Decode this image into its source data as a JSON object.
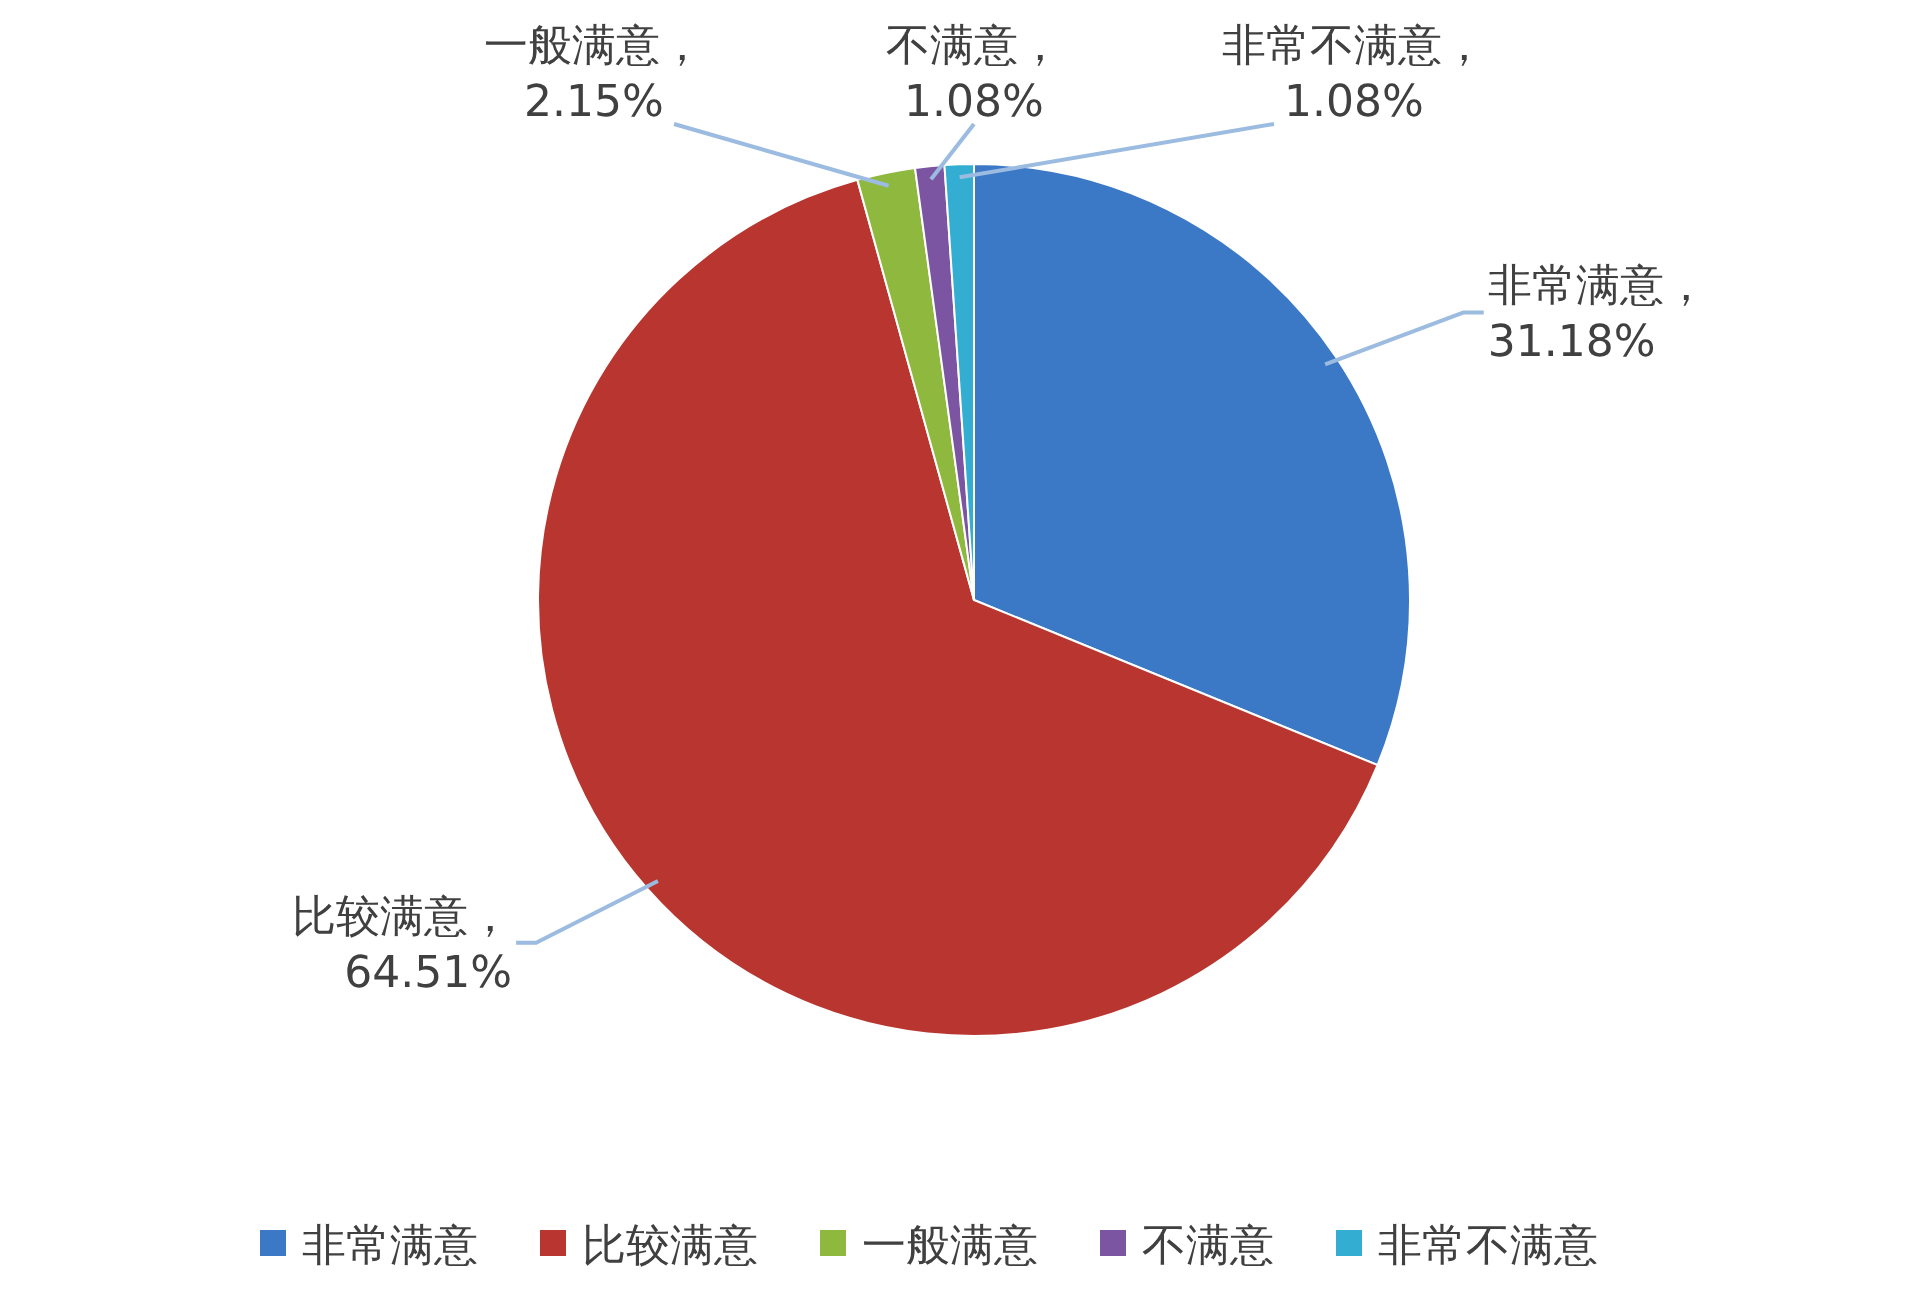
{
  "chart_data": {
    "type": "pie",
    "categories": [
      "非常满意",
      "比较满意",
      "一般满意",
      "不满意",
      "非常不满意"
    ],
    "values": [
      31.18,
      64.51,
      2.15,
      1.08,
      1.08
    ],
    "value_labels": [
      "非常满意，31.18%",
      "比较满意，64.51%",
      "一般满意，2.15%",
      "不满意，1.08%",
      "非常不满意，1.08%"
    ],
    "colors": [
      "#3b78c6",
      "#b8362f",
      "#8fb83f",
      "#7b55a2",
      "#33aed2"
    ],
    "legend": "bottom"
  }
}
